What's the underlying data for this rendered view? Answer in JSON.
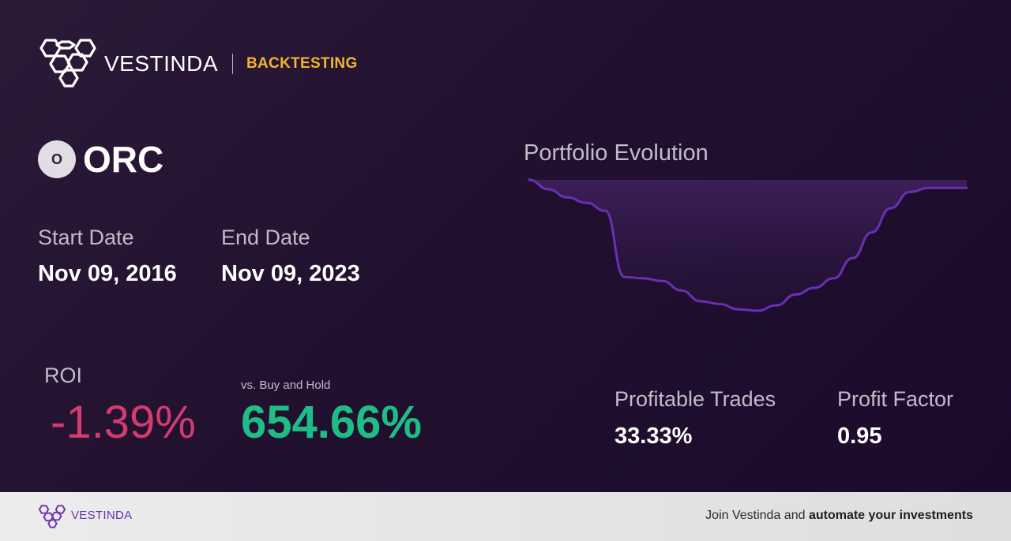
{
  "header": {
    "brand": "VESTINDA",
    "tag": "BACKTESTING",
    "logo_icon": "hexagon-cluster-logo"
  },
  "ticker": {
    "badge": "O",
    "symbol": "ORC"
  },
  "dates": {
    "start_label": "Start Date",
    "start_value": "Nov 09, 2016",
    "end_label": "End Date",
    "end_value": "Nov 09, 2023"
  },
  "returns": {
    "roi_label": "ROI",
    "roi_value": "-1.39%",
    "vs_label": "vs. Buy and Hold",
    "vs_value": "654.66%"
  },
  "chart": {
    "title": "Portfolio Evolution",
    "line_color": "#6a2fb4",
    "fill_color": "#3c1f58"
  },
  "chart_data": {
    "type": "area",
    "title": "Portfolio Evolution",
    "xlabel": "",
    "ylabel": "",
    "grid": false,
    "values": [
      100,
      93,
      87,
      83,
      77,
      28,
      27,
      25,
      18,
      10,
      8,
      4,
      3,
      7,
      15,
      20,
      27,
      42,
      61,
      79,
      91,
      94,
      94,
      94
    ]
  },
  "stats": {
    "profitable_label": "Profitable Trades",
    "profitable_value": "33.33%",
    "profit_factor_label": "Profit Factor",
    "profit_factor_value": "0.95"
  },
  "footer": {
    "brand": "VESTINDA",
    "cta_prefix": "Join Vestinda and ",
    "cta_bold": "automate your investments",
    "logo_icon": "hexagon-cluster-logo"
  },
  "colors": {
    "accent": "#f2b431",
    "negative": "#d43b6e",
    "positive": "#1ebd86",
    "brand_purple": "#6d2fab"
  }
}
